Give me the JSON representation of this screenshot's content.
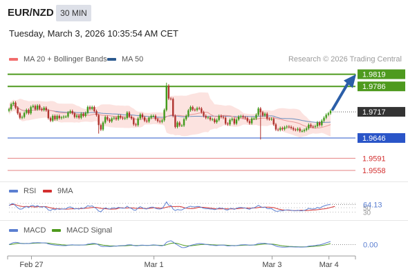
{
  "header": {
    "symbol": "EUR/NZD",
    "interval": "30 MIN",
    "timestamp": "Tuesday, March 3, 2026 10:35:54 AM CET",
    "credit": "Research © 2026 Trading Central"
  },
  "legend": {
    "bollinger": {
      "label": "MA 20 + Bollinger Bands",
      "color": "#f26d6d"
    },
    "ma50": {
      "label": "MA 50",
      "color": "#2c5a8f"
    },
    "rsi": {
      "label": "RSI",
      "color": "#5b7fd1"
    },
    "rsi_ma": {
      "label": "9MA",
      "color": "#d32f2f"
    },
    "macd": {
      "label": "MACD",
      "color": "#5b7fd1"
    },
    "macd_signal": {
      "label": "MACD Signal",
      "color": "#4e9a1e"
    }
  },
  "colors": {
    "up_candle": "#3f9a1a",
    "down_candle": "#b0332e",
    "resistance": "#4e9a1e",
    "support": "#2a55c8",
    "target_low": "#d32f2f",
    "current": "#333333",
    "arrow": "#2b5ea8",
    "band_fill": "#fbd9d6"
  },
  "chart_data": {
    "type": "candlestick",
    "price": {
      "ylim": [
        1.953,
        1.985
      ],
      "levels": [
        {
          "value": 1.9819,
          "label": "1.9819",
          "kind": "resistance"
        },
        {
          "value": 1.9786,
          "label": "1.9786",
          "kind": "resistance"
        },
        {
          "value": 1.9717,
          "label": "1.9717",
          "kind": "current"
        },
        {
          "value": 1.9646,
          "label": "1.9646",
          "kind": "support"
        },
        {
          "value": 1.9591,
          "label": "1.9591",
          "kind": "target"
        },
        {
          "value": 1.9558,
          "label": "1.9558",
          "kind": "target"
        }
      ],
      "close": [
        1.9724,
        1.9738,
        1.9742,
        1.9728,
        1.9713,
        1.9701,
        1.9703,
        1.9714,
        1.9722,
        1.9713,
        1.973,
        1.9733,
        1.9724,
        1.9734,
        1.9725,
        1.9722,
        1.9728,
        1.9721,
        1.97,
        1.9693,
        1.9706,
        1.9697,
        1.9706,
        1.97,
        1.9702,
        1.9704,
        1.9704,
        1.9715,
        1.9719,
        1.9713,
        1.9703,
        1.9707,
        1.9701,
        1.9712,
        1.9706,
        1.9714,
        1.973,
        1.9725,
        1.973,
        1.9719,
        1.9708,
        1.9681,
        1.9669,
        1.9688,
        1.9703,
        1.9696,
        1.9691,
        1.9699,
        1.9701,
        1.9697,
        1.9706,
        1.9701,
        1.9699,
        1.97,
        1.9715,
        1.9704,
        1.9699,
        1.9683,
        1.9681,
        1.9699,
        1.971,
        1.9702,
        1.9693,
        1.9691,
        1.9701,
        1.9706,
        1.9706,
        1.9697,
        1.9692,
        1.969,
        1.9694,
        1.9722,
        1.9788,
        1.9753,
        1.9752,
        1.9706,
        1.9676,
        1.9688,
        1.968,
        1.968,
        1.9697,
        1.9706,
        1.9721,
        1.973,
        1.9723,
        1.9722,
        1.9727,
        1.9726,
        1.9716,
        1.9706,
        1.9701,
        1.9702,
        1.9696,
        1.9697,
        1.9689,
        1.9695,
        1.9706,
        1.9703,
        1.9701,
        1.9685,
        1.9683,
        1.9695,
        1.9698,
        1.9685,
        1.9696,
        1.9704,
        1.9705,
        1.9702,
        1.97,
        1.9692,
        1.9686,
        1.9699,
        1.9699,
        1.9709,
        1.9726,
        1.9716,
        1.9707,
        1.9712,
        1.9698,
        1.9697,
        1.9698,
        1.9683,
        1.9669,
        1.9668,
        1.9673,
        1.967,
        1.9675,
        1.9677,
        1.9676,
        1.9673,
        1.9669,
        1.9668,
        1.9671,
        1.9665,
        1.9665,
        1.9668,
        1.9672,
        1.9682,
        1.9677,
        1.9676,
        1.9678,
        1.9688,
        1.9681,
        1.9693,
        1.9701,
        1.9709,
        1.9713,
        1.972
      ]
    },
    "x_ticks": [
      "Feb 27",
      "Mar 1",
      "Mar 3",
      "Mar 4"
    ],
    "rsi": {
      "latest_label": "64.13",
      "levels": [
        70,
        50,
        30
      ],
      "level_labels": [
        "",
        "50",
        "30"
      ],
      "ylim": [
        0,
        100
      ],
      "values": [
        59.9,
        66.6,
        68.3,
        58.5,
        49.4,
        43.2,
        44.4,
        51.1,
        55.7,
        49.9,
        59.1,
        60.5,
        54.6,
        59.5,
        53.9,
        52.1,
        55.1,
        50.6,
        39.6,
        36.9,
        44.1,
        40.2,
        45.4,
        42.5,
        43.7,
        44.7,
        44.7,
        51.3,
        53.4,
        49.9,
        44.4,
        46.7,
        43.4,
        50.1,
        46.7,
        51.2,
        59.1,
        56.0,
        58.5,
        51.6,
        45.3,
        34.5,
        31.2,
        41.9,
        49.4,
        46.2,
        43.9,
        47.9,
        49.1,
        47.0,
        51.9,
        48.9,
        47.9,
        48.4,
        56.6,
        49.8,
        47.0,
        39.4,
        38.6,
        48.7,
        54.4,
        49.8,
        45.2,
        44.2,
        49.6,
        52.2,
        52.2,
        47.3,
        44.8,
        43.8,
        46.1,
        59.6,
        76.3,
        61.0,
        60.6,
        44.1,
        37.1,
        41.6,
        39.6,
        39.6,
        45.8,
        49.0,
        53.9,
        56.7,
        53.9,
        53.5,
        55.4,
        54.9,
        50.9,
        47.1,
        45.3,
        45.7,
        43.6,
        44.1,
        41.3,
        44.1,
        48.8,
        47.5,
        46.6,
        40.5,
        39.8,
        45.6,
        47.0,
        42.1,
        47.2,
        50.8,
        51.3,
        49.8,
        48.9,
        45.2,
        42.7,
        49.5,
        49.5,
        54.1,
        60.7,
        55.1,
        50.4,
        52.8,
        45.8,
        45.3,
        45.9,
        39.2,
        34.0,
        33.6,
        36.8,
        35.9,
        38.9,
        40.1,
        39.7,
        38.4,
        36.8,
        36.4,
        38.5,
        35.9,
        35.9,
        38.0,
        40.9,
        47.5,
        44.6,
        44.2,
        45.4,
        51.4,
        47.3,
        53.8,
        57.8,
        61.4,
        63.2,
        64.1
      ],
      "ma_values": [
        59.9,
        63.3,
        65.0,
        63.4,
        60.4,
        57.5,
        55.6,
        55.1,
        55.2,
        55.0,
        54.3,
        53.7,
        52.9,
        54.1,
        54.6,
        54.7,
        55.0,
        54.4,
        52.1,
        49.5,
        47.7,
        45.9,
        45.7,
        44.9,
        44.3,
        43.9,
        43.4,
        43.6,
        44.3,
        45.3,
        45.0,
        45.5,
        45.5,
        46.0,
        46.7,
        47.6,
        48.5,
        49.8,
        50.5,
        51.2,
        51.3,
        49.4,
        47.3,
        46.2,
        45.3,
        44.5,
        43.5,
        43.3,
        43.6,
        44.0,
        47.2,
        49.6,
        49.3,
        48.1,
        48.9,
        49.1,
        49.2,
        48.5,
        47.3,
        46.8,
        47.1,
        47.0,
        46.5,
        46.0,
        46.8,
        48.1,
        49.7,
        49.6,
        49.3,
        48.2,
        47.9,
        49.0,
        52.6,
        54.1,
        55.3,
        55.1,
        55.1,
        55.5,
        55.3,
        53.3,
        50.4,
        48.0,
        46.7,
        46.4,
        46.1,
        47.7,
        50.1,
        51.8,
        52.0,
        51.7,
        50.6,
        49.7,
        48.2,
        46.9,
        45.6,
        44.6,
        44.7,
        44.8,
        45.0,
        44.9,
        44.3,
        44.6,
        45.1,
        44.7,
        45.4,
        46.3,
        47.2,
        47.9,
        48.5,
        48.3,
        47.5,
        47.9,
        48.8,
        49.5,
        51.0,
        51.8,
        51.9,
        52.4,
        52.6,
        52.3,
        51.3,
        50.2,
        47.6,
        44.2,
        42.1,
        40.4,
        39.4,
        39.0,
        38.5,
        37.8,
        37.1,
        36.7,
        37.2,
        37.8,
        38.1,
        37.4,
        37.3,
        37.8,
        38.6,
        39.7,
        40.1,
        40.9,
        42.0,
        43.8,
        44.6,
        46.2,
        48.3,
        50.9,
        53.5,
        55.5
      ],
      "grid_ticks": 5
    },
    "macd": {
      "latest_label": "0.00",
      "ylim": [
        -0.0025,
        0.0025
      ],
      "zero_label": "0.00",
      "values": [
        1e-05,
        0.00027,
        0.00053,
        0.00061,
        0.00054,
        0.00038,
        0.00027,
        0.00026,
        0.00031,
        0.00028,
        0.00039,
        0.00049,
        0.00048,
        0.00054,
        0.00051,
        0.00046,
        0.00046,
        0.0004,
        0.00018,
        1e-05,
        -3e-05,
        -0.00015,
        -0.00016,
        -0.00023,
        -0.00026,
        -0.00027,
        -0.00027,
        -0.00019,
        -9e-05,
        -6e-05,
        -0.00011,
        -0.00011,
        -0.00015,
        -9e-05,
        -0.0001,
        -5e-05,
        0.00013,
        0.00021,
        0.00031,
        0.0003,
        0.0002,
        -0.0001,
        -0.00043,
        -0.00053,
        -0.00048,
        -0.00049,
        -0.00053,
        -0.00049,
        -0.00043,
        -0.00042,
        -0.00032,
        -0.00028,
        -0.00026,
        -0.00024,
        -9e-05,
        -6e-05,
        -8e-05,
        -0.00022,
        -0.00034,
        -0.00029,
        -0.00016,
        -0.00013,
        -0.00018,
        -0.00024,
        -0.0002,
        -0.00013,
        -8e-05,
        -0.00012,
        -0.0002,
        -0.00028,
        -0.00031,
        -0.0001,
        0.00061,
        0.00087,
        0.00103,
        0.00074,
        0.00024,
        -8e-05,
        -0.00047,
        -0.00077,
        -0.00082,
        -0.00072,
        -0.00047,
        -0.0002,
        -5e-05,
        7e-05,
        0.0002,
        0.00028,
        0.00026,
        0.00016,
        5e-05,
        -2e-05,
        -0.00011,
        -0.00015,
        -0.00023,
        -0.00025,
        -0.00017,
        -0.00013,
        -0.00012,
        -0.00024,
        -0.00035,
        -0.00032,
        -0.00026,
        -0.00032,
        -0.00026,
        -0.00016,
        -8e-05,
        -4e-05,
        -2e-05,
        -8e-05,
        -0.00016,
        -0.00011,
        -7e-05,
        5e-05,
        0.00029,
        0.00036,
        0.00034,
        0.00036,
        0.00024,
        0.00014,
        8e-05,
        -0.00011,
        -0.00037,
        -0.00055,
        -0.00063,
        -0.00069,
        -0.00068,
        -0.00064,
        -0.00062,
        -0.00061,
        -0.00063,
        -0.00065,
        -0.00063,
        -0.00066,
        -0.00067,
        -0.00064,
        -0.00057,
        -0.00043,
        -0.00035,
        -0.0003,
        -0.00025,
        -0.00011,
        -7e-05,
        8e-05,
        0.00026,
        0.00046,
        0.00064,
        0.00083
      ],
      "signal": [
        0.0,
        6e-05,
        0.00015,
        0.00025,
        0.00031,
        0.00033,
        0.00031,
        0.0003,
        0.0003,
        0.0003,
        0.00032,
        0.00035,
        0.00038,
        0.00041,
        0.00043,
        0.00044,
        0.00044,
        0.00043,
        0.00038,
        0.00031,
        0.00024,
        0.00016,
        0.0001,
        3e-05,
        -3e-05,
        -8e-05,
        -0.00012,
        -0.00013,
        -0.00013,
        -0.00011,
        -0.00011,
        -0.00011,
        -0.00012,
        -0.00011,
        -0.00011,
        -0.0001,
        -5e-05,
        1e-05,
        8e-05,
        0.00013,
        0.00014,
        9e-05,
        -2e-05,
        -0.00013,
        -0.0002,
        -0.00026,
        -0.00031,
        -0.00035,
        -0.00036,
        -0.00038,
        -0.00037,
        -0.00035,
        -0.00033,
        -0.00031,
        -0.00027,
        -0.00022,
        -0.00019,
        -0.0002,
        -0.00023,
        -0.00024,
        -0.00023,
        -0.00021,
        -0.0002,
        -0.00021,
        -0.00021,
        -0.00019,
        -0.00017,
        -0.00016,
        -0.00017,
        -0.00019,
        -0.00021,
        -0.00019,
        -3e-05,
        0.00015,
        0.00032,
        0.00041,
        0.00038,
        0.00029,
        0.00013,
        -5e-05,
        -0.0002,
        -0.00031,
        -0.00034,
        -0.00031,
        -0.00026,
        -0.00019,
        -0.00011,
        -3e-05,
        2e-05,
        5e-05,
        5e-05,
        3e-05,
        0.0,
        -3e-05,
        -7e-05,
        -0.00011,
        -0.00012,
        -0.00012,
        -0.00012,
        -0.00015,
        -0.00019,
        -0.00022,
        -0.00023,
        -0.00025,
        -0.00025,
        -0.00023,
        -0.0002,
        -0.00017,
        -0.00014,
        -0.00013,
        -0.00013,
        -0.00013,
        -0.00012,
        -9e-05,
        -1e-05,
        6e-05,
        0.00012,
        0.00016,
        0.00018,
        0.00017,
        0.00015,
        0.0001,
        0.0,
        -0.00011,
        -0.00022,
        -0.00031,
        -0.00039,
        -0.00044,
        -0.00048,
        -0.0005,
        -0.00053,
        -0.00055,
        -0.00057,
        -0.00059,
        -0.0006,
        -0.00061,
        -0.0006,
        -0.00057,
        -0.00052,
        -0.00048,
        -0.00043,
        -0.00037,
        -0.00031,
        -0.00023,
        -0.00013,
        -1e-05,
        0.00012,
        0.00026
      ]
    }
  }
}
